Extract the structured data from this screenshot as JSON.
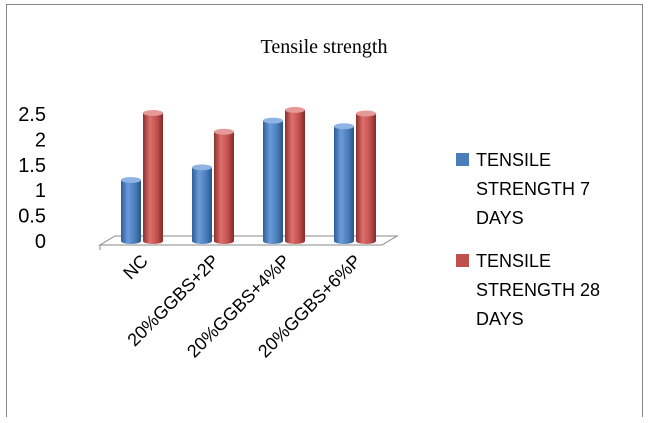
{
  "chart_data": {
    "type": "bar",
    "title": "Tensile strength",
    "categories": [
      "NC",
      "20%GGBS+2P",
      "20%GGBS+4%P",
      "20%GGBS+6%P"
    ],
    "series": [
      {
        "name": "TENSILE STRENGTH 7 DAYS",
        "values": [
          1.2,
          1.45,
          2.37,
          2.26
        ],
        "color": "#4a7ebb"
      },
      {
        "name": "TENSILE STRENGTH 28 DAYS",
        "values": [
          2.52,
          2.15,
          2.58,
          2.51
        ],
        "color": "#c0504d"
      }
    ],
    "yticks": [
      "0",
      "0.5",
      "1",
      "1.5",
      "2",
      "2.5"
    ],
    "ylim": [
      0,
      2.5
    ],
    "grid": false,
    "legend_position": "right",
    "style": "3d-cylinder"
  }
}
